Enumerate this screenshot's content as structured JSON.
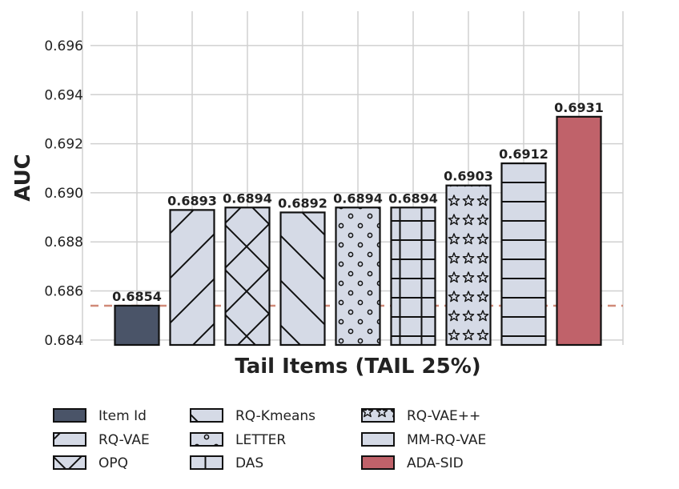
{
  "chart_data": {
    "type": "bar",
    "title": "",
    "xlabel": "Tail Items (TAIL 25%)",
    "ylabel": "AUC",
    "ylim": [
      0.6838,
      0.6974
    ],
    "yticks": [
      0.684,
      0.686,
      0.688,
      0.69,
      0.692,
      0.694,
      0.696
    ],
    "ytick_labels": [
      "0.684",
      "0.686",
      "0.688",
      "0.690",
      "0.692",
      "0.694",
      "0.696"
    ],
    "grid": true,
    "legend_position": "bottom",
    "reference_line": {
      "value": 0.6854,
      "style": "dashed",
      "color": "#d08a78"
    },
    "categories": [
      "Item Id",
      "RQ-VAE",
      "OPQ",
      "RQ-Kmeans",
      "LETTER",
      "DAS",
      "RQ-VAE++",
      "MM-RQ-VAE",
      "ADA-SID"
    ],
    "values": [
      0.6854,
      0.6893,
      0.6894,
      0.6892,
      0.6894,
      0.6894,
      0.6903,
      0.6912,
      0.6931
    ],
    "value_labels": [
      "0.6854",
      "0.6893",
      "0.6894",
      "0.6892",
      "0.6894",
      "0.6894",
      "0.6903",
      "0.6912",
      "0.6931"
    ],
    "bar_styles": [
      {
        "fill": "#4a5468",
        "pattern": "none"
      },
      {
        "fill": "#d5dae6",
        "pattern": "diag-up"
      },
      {
        "fill": "#d5dae6",
        "pattern": "cross-diag"
      },
      {
        "fill": "#d5dae6",
        "pattern": "diag-down"
      },
      {
        "fill": "#d5dae6",
        "pattern": "dots"
      },
      {
        "fill": "#d5dae6",
        "pattern": "grid"
      },
      {
        "fill": "#d5dae6",
        "pattern": "stars"
      },
      {
        "fill": "#d5dae6",
        "pattern": "horizontal"
      },
      {
        "fill": "#c0626a",
        "pattern": "none"
      }
    ],
    "legend_order": [
      "Item Id",
      "RQ-VAE",
      "OPQ",
      "RQ-Kmeans",
      "LETTER",
      "DAS",
      "RQ-VAE++",
      "MM-RQ-VAE",
      "ADA-SID"
    ]
  }
}
